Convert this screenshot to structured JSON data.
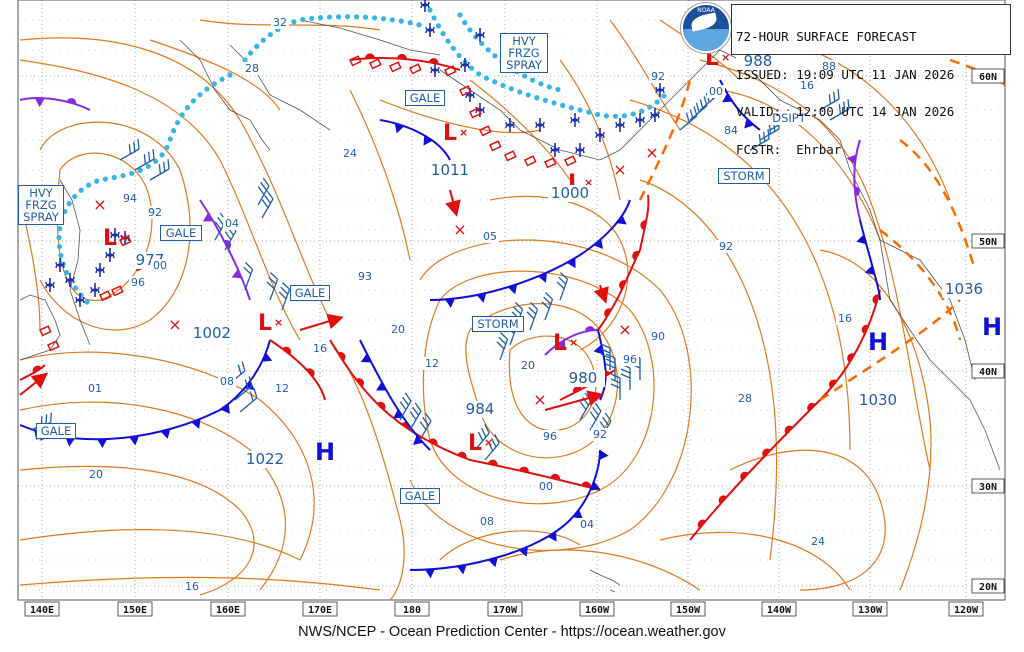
{
  "header": {
    "line1": "72-HOUR SURFACE FORECAST",
    "line2": "ISSUED: 19:09 UTC 11 JAN 2026",
    "line3": "VALID:  12:00 UTC 14 JAN 2026",
    "line4": "FCSTR:  Ehrbar",
    "logo_text": "NOAA"
  },
  "footer": "NWS/NCEP - Ocean Prediction Center - https://ocean.weather.gov",
  "bottom_axis": [
    "140E",
    "150E",
    "160E",
    "170E",
    "180",
    "170W",
    "160W",
    "150W",
    "140W",
    "130W",
    "120W"
  ],
  "right_axis": [
    "60N",
    "50N",
    "40N",
    "30N",
    "20N"
  ],
  "warnings": [
    {
      "text": "HVY FRZG SPRAY",
      "lines": [
        "HVY",
        "FRZG",
        "SPRAY"
      ]
    },
    {
      "text": "HVY FRZG SPRAY",
      "lines": [
        "HVY",
        "FRZG",
        "SPRAY"
      ]
    },
    {
      "text": "GALE"
    },
    {
      "text": "GALE"
    },
    {
      "text": "GALE"
    },
    {
      "text": "GALE"
    },
    {
      "text": "GALE"
    },
    {
      "text": "STORM"
    },
    {
      "text": "STORM"
    },
    {
      "text": "DSIPT"
    }
  ],
  "pressure_centers": [
    {
      "type": "L",
      "value": "977"
    },
    {
      "type": "L",
      "value": "1002"
    },
    {
      "type": "L",
      "value": "1011"
    },
    {
      "type": "L",
      "value": "980"
    },
    {
      "type": "L",
      "value": "984"
    },
    {
      "type": "L",
      "value": "1000"
    },
    {
      "type": "L",
      "value": "988"
    },
    {
      "type": "H",
      "value": "1022"
    },
    {
      "type": "H",
      "value": "1030"
    },
    {
      "type": "H",
      "value": "1036"
    }
  ],
  "isobar_labels": [
    "32",
    "28",
    "24",
    "94",
    "92",
    "04",
    "00",
    "96",
    "93",
    "20",
    "16",
    "12",
    "08",
    "01",
    "20",
    "16",
    "05",
    "00",
    "92",
    "16",
    "28",
    "24",
    "20",
    "96",
    "92",
    "00",
    "04",
    "08",
    "12",
    "16",
    "88",
    "84",
    "00",
    "92",
    "96",
    "90"
  ],
  "colors": {
    "isobar": "#e07b1f",
    "cold_front": "#1010d8",
    "warm_front": "#e01010",
    "occluded": "#8a2be2",
    "ice": "#38b6e8",
    "trough": "#ff6a00",
    "wind": "#1f5fa8",
    "coast": "#555555",
    "grid": "#555555"
  },
  "icons": [
    "noaa-logo-icon",
    "low-pressure-icon",
    "high-pressure-icon",
    "freezing-spray-icon",
    "wind-barb-icon",
    "ice-edge-icon"
  ]
}
